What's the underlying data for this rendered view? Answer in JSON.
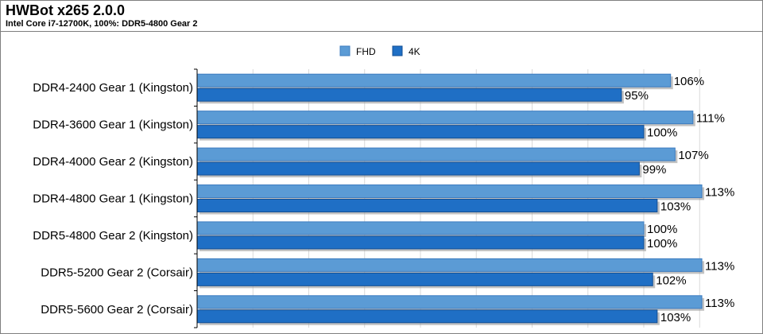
{
  "header": {
    "title": "HWBot x265 2.0.0",
    "subtitle": "Intel Core i7-12700K, 100%: DDR5-4800 Gear 2"
  },
  "colors": {
    "fhd": "#5b9bd5",
    "fhd_dark": "#3d7cc0",
    "k4": "#1f6fc5",
    "k4_dark": "#134f94",
    "grid": "#d9d9d9",
    "axis": "#000000"
  },
  "chart_data": {
    "type": "bar",
    "orientation": "horizontal",
    "title": "HWBot x265 2.0.0",
    "subtitle": "Intel Core i7-12700K, 100%: DDR5-4800 Gear 2",
    "categories": [
      "DDR4-2400 Gear 1 (Kingston)",
      "DDR4-3600 Gear 1 (Kingston)",
      "DDR4-4000 Gear 2 (Kingston)",
      "DDR4-4800 Gear 1 (Kingston)",
      "DDR5-4800 Gear 2 (Kingston)",
      "DDR5-5200 Gear 2 (Corsair)",
      "DDR5-5600 Gear 2 (Corsair)"
    ],
    "series": [
      {
        "name": "FHD",
        "values": [
          106,
          111,
          107,
          113,
          100,
          113,
          113
        ],
        "labels": [
          "106%",
          "111%",
          "107%",
          "113%",
          "100%",
          "113%",
          "113%"
        ]
      },
      {
        "name": "4K",
        "values": [
          95,
          100,
          99,
          103,
          100,
          102,
          103
        ],
        "labels": [
          "95%",
          "100%",
          "99%",
          "103%",
          "100%",
          "102%",
          "103%"
        ]
      }
    ],
    "xlim": [
      0,
      113
    ],
    "grid": true,
    "legend": "top-center",
    "value_format": "percent"
  }
}
